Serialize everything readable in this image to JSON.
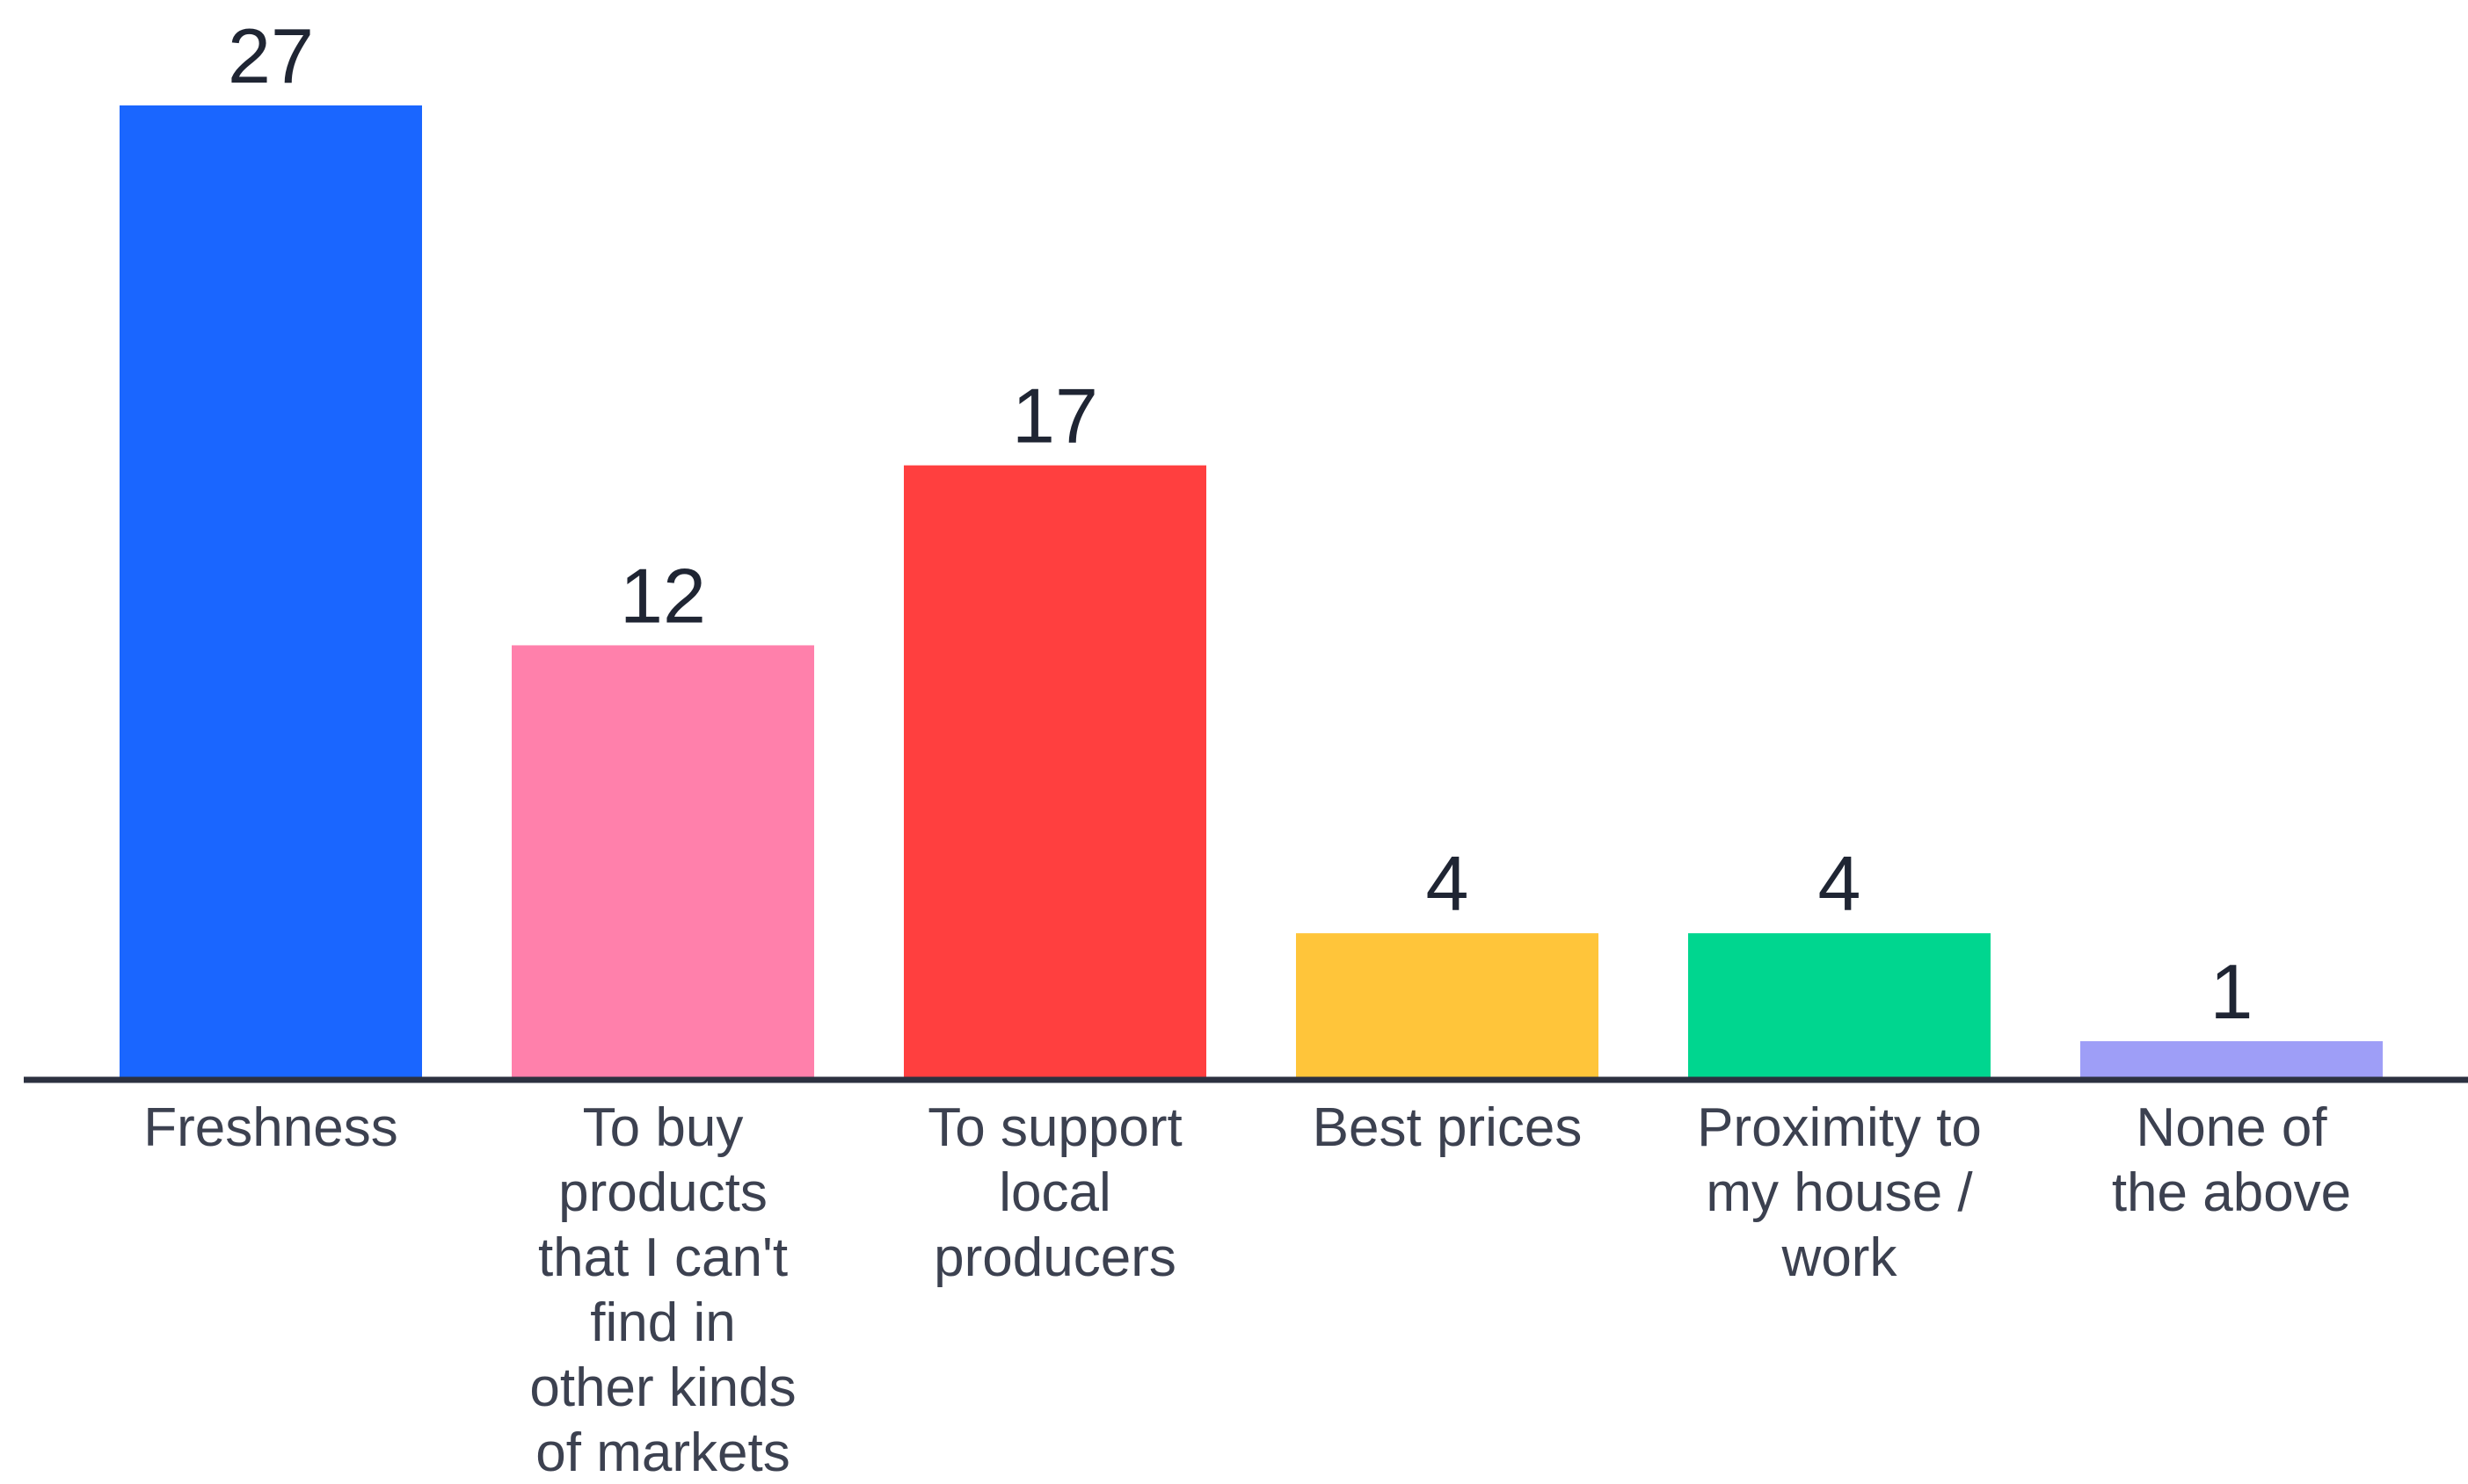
{
  "chart_data": {
    "type": "bar",
    "categories": [
      [
        "Freshness"
      ],
      [
        "To buy",
        "products",
        "that I can't",
        "find in",
        "other kinds",
        "of markets"
      ],
      [
        "To support",
        "local",
        "producers"
      ],
      [
        "Best prices"
      ],
      [
        "Proximity to",
        "my house /",
        "work"
      ],
      [
        "None of",
        "the above"
      ]
    ],
    "values": [
      27,
      12,
      17,
      4,
      4,
      1
    ],
    "value_labels": [
      "27",
      "12",
      "17",
      "4",
      "4",
      "1"
    ],
    "colors": [
      "#1a66ff",
      "#ff80ab",
      "#ff3f3f",
      "#ffc53a",
      "#00d68f",
      "#9e9ef7"
    ],
    "title": "",
    "xlabel": "",
    "ylabel": "",
    "ylim": [
      0,
      27
    ],
    "grid": false,
    "legend": "none",
    "data_labels": "above"
  }
}
